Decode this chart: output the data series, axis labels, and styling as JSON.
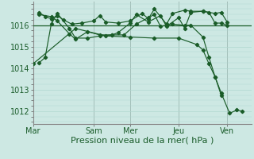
{
  "bg_color": "#cde8e3",
  "grid_color": "#b0d8d0",
  "line_color": "#1a5c28",
  "day_sep_color": "#888888",
  "xlabel": "Pression niveau de la mer( hPa )",
  "xlabel_fontsize": 8,
  "ylim": [
    1011.4,
    1017.1
  ],
  "yticks": [
    1012,
    1013,
    1014,
    1015,
    1016
  ],
  "xtick_labels": [
    "Mar",
    "Sam",
    "Mer",
    "Jeu",
    "Ven"
  ],
  "xtick_positions": [
    0,
    5,
    8,
    12,
    16
  ],
  "xlim": [
    0,
    18
  ],
  "horizontal_line_y": 1016.0,
  "series": [
    {
      "x": [
        0.5,
        1.0,
        1.5,
        2.0,
        2.5,
        3.2,
        4.0,
        5.0,
        5.5,
        6.0,
        7.0,
        8.0,
        9.0,
        9.5,
        10.0,
        11.0,
        11.5,
        12.5,
        13.0,
        14.0,
        15.0,
        15.5,
        16.0
      ],
      "y": [
        1016.6,
        1016.4,
        1016.3,
        1016.45,
        1016.25,
        1016.05,
        1016.1,
        1016.2,
        1016.45,
        1016.15,
        1016.1,
        1016.2,
        1016.55,
        1016.3,
        1016.75,
        1016.05,
        1016.55,
        1016.7,
        1016.65,
        1016.65,
        1016.55,
        1016.6,
        1016.15
      ]
    },
    {
      "x": [
        0.5,
        1.5,
        2.0,
        3.0,
        3.5,
        4.5,
        5.5,
        6.5,
        7.0,
        8.0,
        8.5,
        9.5,
        10.5,
        11.0,
        12.0,
        12.5,
        13.0,
        14.0,
        14.5,
        15.0,
        15.5,
        16.0
      ],
      "y": [
        1016.5,
        1016.4,
        1016.2,
        1015.6,
        1015.35,
        1015.7,
        1015.55,
        1015.55,
        1015.65,
        1016.1,
        1016.5,
        1016.15,
        1016.45,
        1015.95,
        1016.35,
        1015.85,
        1016.6,
        1016.65,
        1016.6,
        1016.1,
        1016.1,
        1016.0
      ]
    },
    {
      "x": [
        0.5,
        1.0,
        1.5,
        2.0,
        3.0,
        3.5,
        4.5,
        5.5,
        6.5,
        7.5,
        8.5,
        9.5,
        10.0,
        10.5,
        11.5,
        12.5,
        13.0,
        14.0,
        14.5,
        15.0,
        15.5
      ],
      "y": [
        1014.25,
        1014.5,
        1016.05,
        1016.55,
        1015.85,
        1015.4,
        1015.4,
        1015.5,
        1015.55,
        1015.55,
        1016.05,
        1016.35,
        1016.5,
        1015.95,
        1016.05,
        1016.0,
        1016.0,
        1015.45,
        1014.5,
        1013.6,
        1012.75
      ]
    },
    {
      "x": [
        0.0,
        3.5,
        6.0,
        8.0,
        10.0,
        12.0,
        13.5,
        14.0,
        14.5,
        15.0,
        15.5,
        16.2,
        16.8,
        17.2
      ],
      "y": [
        1014.2,
        1015.85,
        1015.5,
        1015.45,
        1015.4,
        1015.4,
        1015.1,
        1014.85,
        1014.2,
        1013.6,
        1012.85,
        1011.9,
        1012.05,
        1012.0
      ]
    }
  ]
}
